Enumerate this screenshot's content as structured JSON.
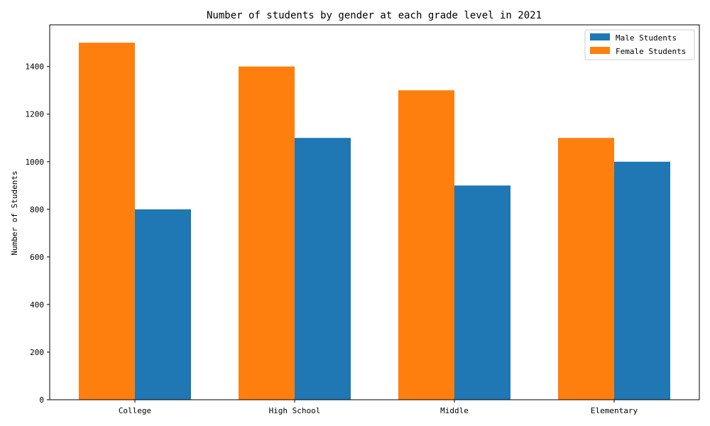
{
  "chart_data": {
    "type": "bar",
    "title": "Number of students by gender at each grade level in 2021",
    "xlabel": "",
    "ylabel": "Number of Students",
    "categories": [
      "College",
      "High School",
      "Middle",
      "Elementary"
    ],
    "series": [
      {
        "name": "Male Students",
        "color": "#1f77b4",
        "values": [
          800,
          1100,
          900,
          1000
        ]
      },
      {
        "name": "Female Students",
        "color": "#ff7f0e",
        "values": [
          1500,
          1400,
          1300,
          1100
        ]
      }
    ],
    "ylim": [
      0,
      1575
    ],
    "yticks": [
      0,
      200,
      400,
      600,
      800,
      1000,
      1200,
      1400
    ],
    "grid": false,
    "legend_position": "top-right"
  }
}
